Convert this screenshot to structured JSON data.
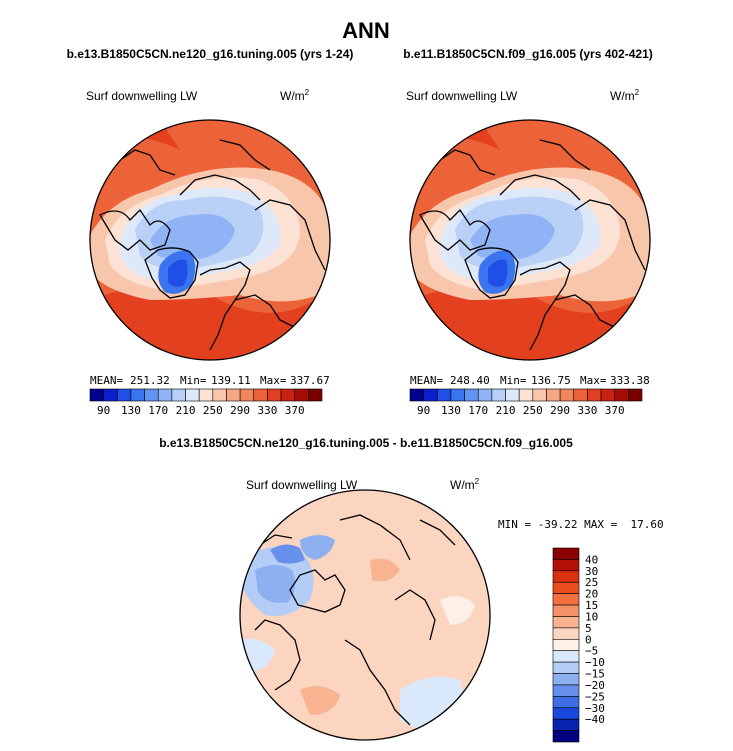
{
  "chart_data": {
    "type": "heatmap",
    "title": "ANN",
    "variable": "Surf downwelling LW",
    "units_base": "W/m",
    "units_exp": "2",
    "panels": [
      {
        "id": "case",
        "subtitle": "b.e13.B1850C5CN.ne120_g16.tuning.005 (yrs 1-24)",
        "stats": {
          "mean_label": "MEAN=",
          "mean": "251.32",
          "min_label": "Min=",
          "min": "139.11",
          "max_label": "Max=",
          "max": "337.67"
        }
      },
      {
        "id": "control",
        "subtitle": "b.e11.B1850C5CN.f09_g16.005 (yrs 402-421)",
        "stats": {
          "mean_label": "MEAN=",
          "mean": "248.40",
          "min_label": "Min=",
          "min": "136.75",
          "max_label": "Max=",
          "max": "333.38"
        }
      },
      {
        "id": "diff",
        "subtitle": "b.e13.B1850C5CN.ne120_g16.tuning.005 - b.e11.B1850C5CN.f09_g16.005",
        "stats_text": "MIN = -39.22 MAX =  17.60"
      }
    ],
    "abs_colorbar": {
      "levels": [
        90,
        130,
        170,
        210,
        250,
        290,
        330,
        370
      ],
      "colors": [
        "#00008c",
        "#0a1ecf",
        "#1f4fe6",
        "#3b74ef",
        "#6294f2",
        "#8fb3f5",
        "#b9d0f7",
        "#dde8f9",
        "#fbe2d4",
        "#f8c7ab",
        "#f5a883",
        "#f1865c",
        "#ec633a",
        "#e3401f",
        "#c92112",
        "#a60d08",
        "#7a0000"
      ]
    },
    "diff_colorbar": {
      "levels": [
        "40",
        "30",
        "25",
        "20",
        "15",
        "10",
        "5",
        "0",
        "−5",
        "−10",
        "−15",
        "−20",
        "−25",
        "−30",
        "−40"
      ],
      "colors": [
        "#8b0000",
        "#b30f07",
        "#d9300e",
        "#ec4d1f",
        "#f47040",
        "#f69268",
        "#f8b391",
        "#fbd5bf",
        "#fdf0e6",
        "#d9e8fb",
        "#b3cdf6",
        "#8db0f1",
        "#6690ec",
        "#3e6ee6",
        "#1848de",
        "#0a22b0",
        "#000080"
      ]
    }
  }
}
